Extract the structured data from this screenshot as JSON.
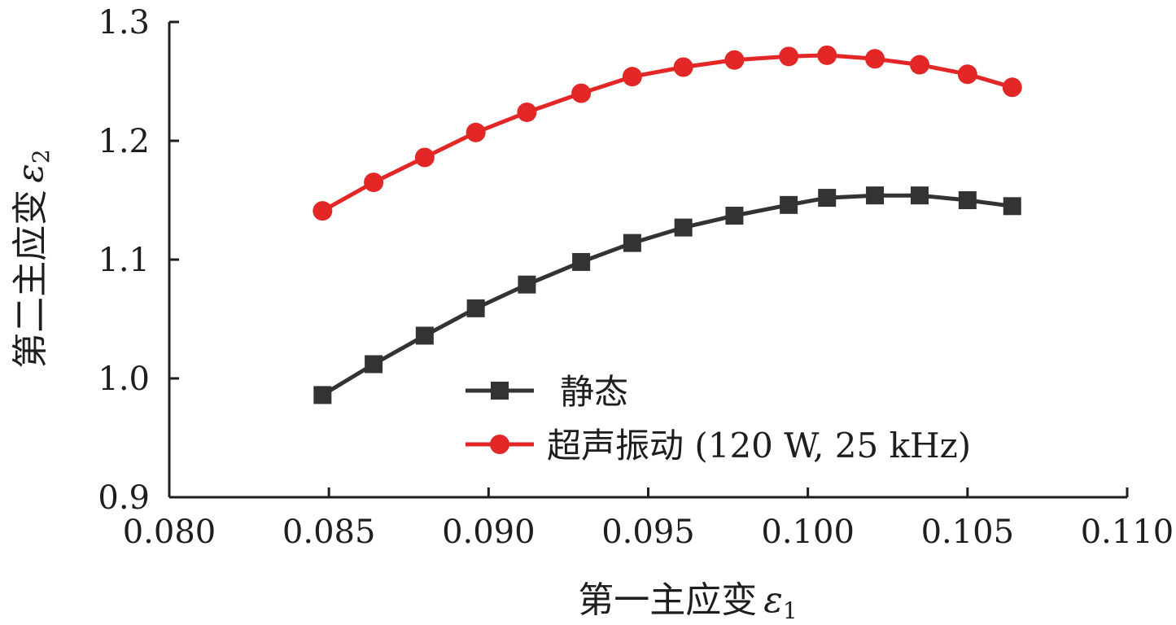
{
  "chart_data": {
    "type": "line",
    "xlabel": "第一主应变",
    "xlabel_symbol": "ε",
    "xlabel_sub": "1",
    "ylabel": "第二主应变",
    "ylabel_symbol": "ε",
    "ylabel_sub": "2",
    "xlim": [
      0.08,
      0.11
    ],
    "ylim": [
      0.9,
      1.3
    ],
    "xticks": [
      0.08,
      0.085,
      0.09,
      0.095,
      0.1,
      0.105,
      0.11
    ],
    "xtick_labels": [
      "0.080",
      "0.085",
      "0.090",
      "0.095",
      "0.100",
      "0.105",
      "0.110"
    ],
    "yticks": [
      0.9,
      1.0,
      1.1,
      1.2,
      1.3
    ],
    "ytick_labels": [
      "0.9",
      "1.0",
      "1.1",
      "1.2",
      "1.3"
    ],
    "grid": false,
    "legend_position": "bottom-center",
    "series": [
      {
        "name": "静态",
        "color": "#333333",
        "marker": "square",
        "x": [
          0.0848,
          0.0864,
          0.088,
          0.0896,
          0.0912,
          0.0929,
          0.0945,
          0.0961,
          0.0977,
          0.0994,
          0.1006,
          0.1021,
          0.1035,
          0.105,
          0.1064
        ],
        "y": [
          0.986,
          1.012,
          1.036,
          1.059,
          1.079,
          1.098,
          1.114,
          1.127,
          1.137,
          1.146,
          1.152,
          1.154,
          1.154,
          1.15,
          1.145
        ]
      },
      {
        "name": "超声振动 (120 W, 25 kHz)",
        "color": "#e32626",
        "marker": "circle",
        "x": [
          0.0848,
          0.0864,
          0.088,
          0.0896,
          0.0912,
          0.0929,
          0.0945,
          0.0961,
          0.0977,
          0.0994,
          0.1006,
          0.1021,
          0.1035,
          0.105,
          0.1064
        ],
        "y": [
          1.141,
          1.165,
          1.186,
          1.207,
          1.224,
          1.24,
          1.254,
          1.262,
          1.268,
          1.271,
          1.272,
          1.269,
          1.264,
          1.256,
          1.245
        ]
      }
    ]
  }
}
